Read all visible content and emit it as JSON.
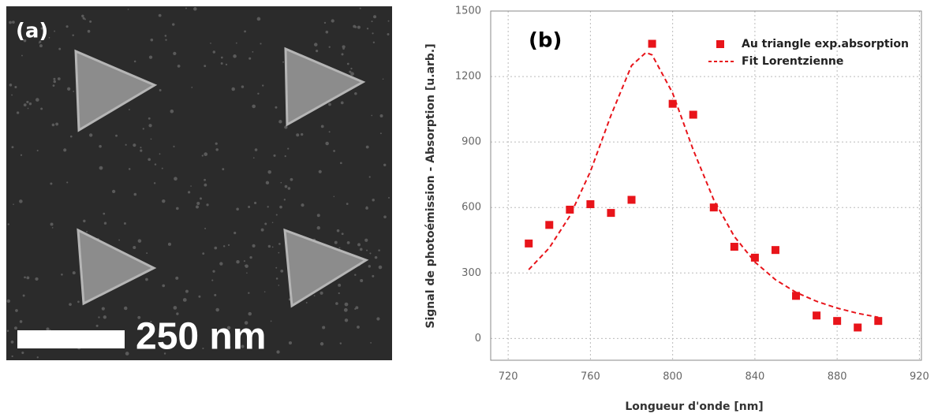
{
  "image_panel": {
    "label": "(a)",
    "scale_bar": "250 nm"
  },
  "chart_data": {
    "type": "scatter",
    "label": "(b)",
    "x_label": "Longueur d'onde [nm]",
    "y_label": "Signal de photoémission - Absorption [u.arb.]",
    "xlim": [
      711.5,
      921
    ],
    "ylim": [
      -100,
      1500
    ],
    "xticks": [
      720,
      760,
      800,
      840,
      880,
      920
    ],
    "yticks": [
      0,
      300,
      600,
      900,
      1200,
      1500
    ],
    "grid": true,
    "legend": "top-right",
    "series": [
      {
        "name": "Au triangle exp.absorption",
        "color": "#e8141a",
        "type": "scatter",
        "x": [
          730,
          740,
          750,
          760,
          770,
          780,
          790,
          800,
          810,
          820,
          830,
          840,
          850,
          860,
          870,
          880,
          890,
          900
        ],
        "values": [
          435,
          520,
          590,
          615,
          575,
          635,
          1350,
          1075,
          1025,
          600,
          420,
          370,
          405,
          195,
          105,
          80,
          50,
          80
        ]
      },
      {
        "name": "Fit Lorentzienne",
        "color": "#e8141a",
        "type": "line",
        "dashed": true,
        "x": [
          730,
          740,
          750,
          760,
          770,
          780,
          787,
          790,
          800,
          810,
          820,
          830,
          840,
          850,
          860,
          870,
          880,
          890,
          900
        ],
        "values": [
          315,
          415,
          561,
          765,
          1022,
          1250,
          1310,
          1299,
          1124,
          864,
          635,
          467,
          350,
          269,
          211,
          170,
          139,
          115,
          97
        ]
      }
    ]
  }
}
